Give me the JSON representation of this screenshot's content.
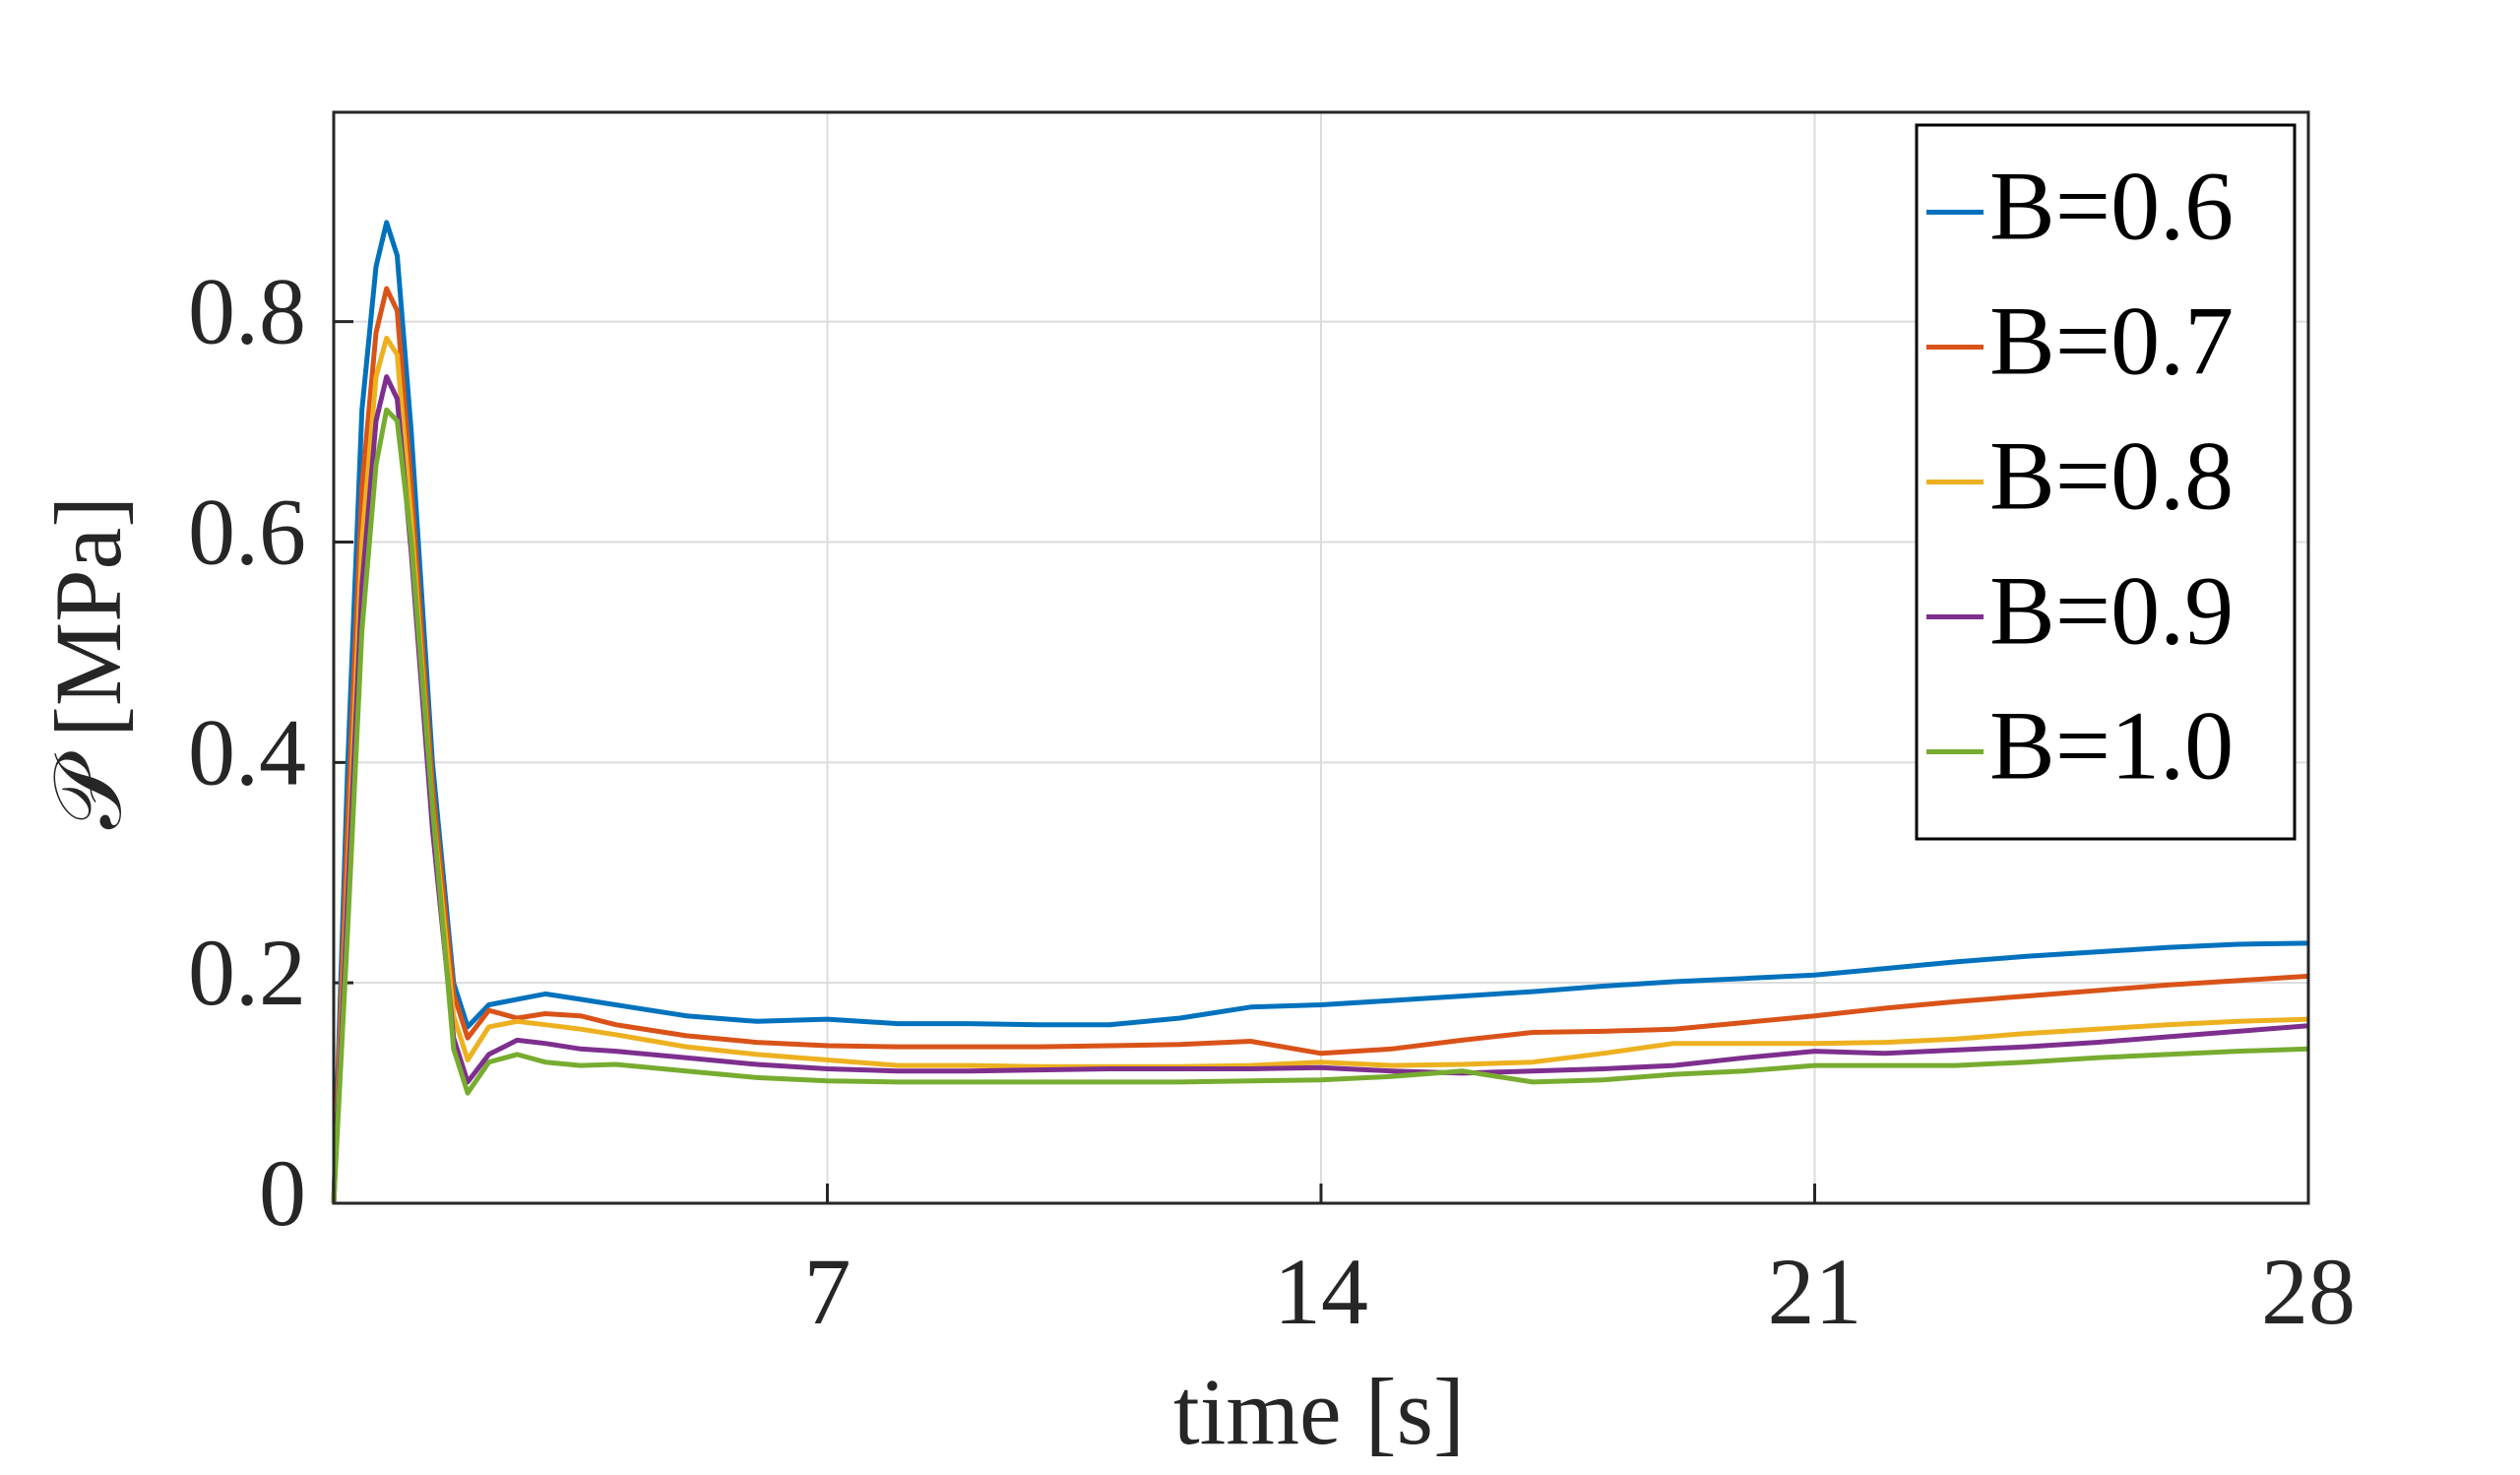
{
  "chart_data": {
    "type": "line",
    "xlabel": "time [s]",
    "ylabel": "𝒫 [MPa]",
    "xlim": [
      0,
      28
    ],
    "ylim": [
      0,
      0.99
    ],
    "xticks": [
      7,
      14,
      21,
      28
    ],
    "yticks": [
      0,
      0.2,
      0.4,
      0.6,
      0.8
    ],
    "grid": true,
    "legend": "north-east",
    "x": [
      0,
      0.2,
      0.4,
      0.6,
      0.75,
      0.9,
      1.1,
      1.4,
      1.7,
      1.9,
      2.2,
      2.6,
      3,
      3.5,
      4,
      5,
      6,
      7,
      8,
      9,
      10,
      11,
      12,
      13,
      14,
      15,
      16,
      17,
      18,
      19,
      20,
      21,
      22,
      23,
      24,
      25,
      26,
      27,
      28
    ],
    "series": [
      {
        "name": "B=0.6",
        "color": "#0072bd",
        "values": [
          0,
          0.4,
          0.72,
          0.85,
          0.89,
          0.86,
          0.7,
          0.4,
          0.2,
          0.16,
          0.18,
          0.185,
          0.19,
          0.185,
          0.18,
          0.17,
          0.165,
          0.167,
          0.163,
          0.163,
          0.162,
          0.162,
          0.168,
          0.178,
          0.18,
          0.184,
          0.188,
          0.192,
          0.197,
          0.201,
          0.204,
          0.207,
          0.213,
          0.219,
          0.224,
          0.228,
          0.232,
          0.235,
          0.236
        ]
      },
      {
        "name": "B=0.7",
        "color": "#d95319",
        "values": [
          0,
          0.35,
          0.65,
          0.79,
          0.83,
          0.81,
          0.65,
          0.38,
          0.19,
          0.15,
          0.175,
          0.168,
          0.172,
          0.17,
          0.162,
          0.152,
          0.146,
          0.143,
          0.142,
          0.142,
          0.142,
          0.143,
          0.144,
          0.147,
          0.136,
          0.14,
          0.148,
          0.155,
          0.156,
          0.158,
          0.164,
          0.17,
          0.177,
          0.183,
          0.188,
          0.193,
          0.198,
          0.202,
          0.206
        ]
      },
      {
        "name": "B=0.8",
        "color": "#edb120",
        "values": [
          0,
          0.3,
          0.6,
          0.75,
          0.785,
          0.77,
          0.62,
          0.36,
          0.17,
          0.13,
          0.16,
          0.165,
          0.162,
          0.158,
          0.153,
          0.142,
          0.135,
          0.13,
          0.125,
          0.125,
          0.124,
          0.124,
          0.124,
          0.125,
          0.128,
          0.125,
          0.126,
          0.128,
          0.136,
          0.145,
          0.145,
          0.145,
          0.146,
          0.149,
          0.154,
          0.158,
          0.162,
          0.165,
          0.167
        ]
      },
      {
        "name": "B=0.9",
        "color": "#7e2f8e",
        "values": [
          0,
          0.28,
          0.56,
          0.71,
          0.75,
          0.73,
          0.59,
          0.34,
          0.15,
          0.11,
          0.135,
          0.148,
          0.145,
          0.14,
          0.138,
          0.132,
          0.126,
          0.122,
          0.12,
          0.12,
          0.121,
          0.122,
          0.122,
          0.122,
          0.123,
          0.12,
          0.118,
          0.12,
          0.122,
          0.125,
          0.132,
          0.138,
          0.136,
          0.139,
          0.142,
          0.146,
          0.151,
          0.156,
          0.161
        ]
      },
      {
        "name": "B=1.0",
        "color": "#77ac30",
        "values": [
          0,
          0.25,
          0.52,
          0.67,
          0.72,
          0.71,
          0.6,
          0.36,
          0.14,
          0.1,
          0.128,
          0.135,
          0.128,
          0.125,
          0.126,
          0.12,
          0.114,
          0.111,
          0.11,
          0.11,
          0.11,
          0.11,
          0.11,
          0.111,
          0.112,
          0.115,
          0.12,
          0.11,
          0.112,
          0.117,
          0.12,
          0.125,
          0.125,
          0.125,
          0.128,
          0.132,
          0.135,
          0.138,
          0.14
        ]
      }
    ]
  }
}
